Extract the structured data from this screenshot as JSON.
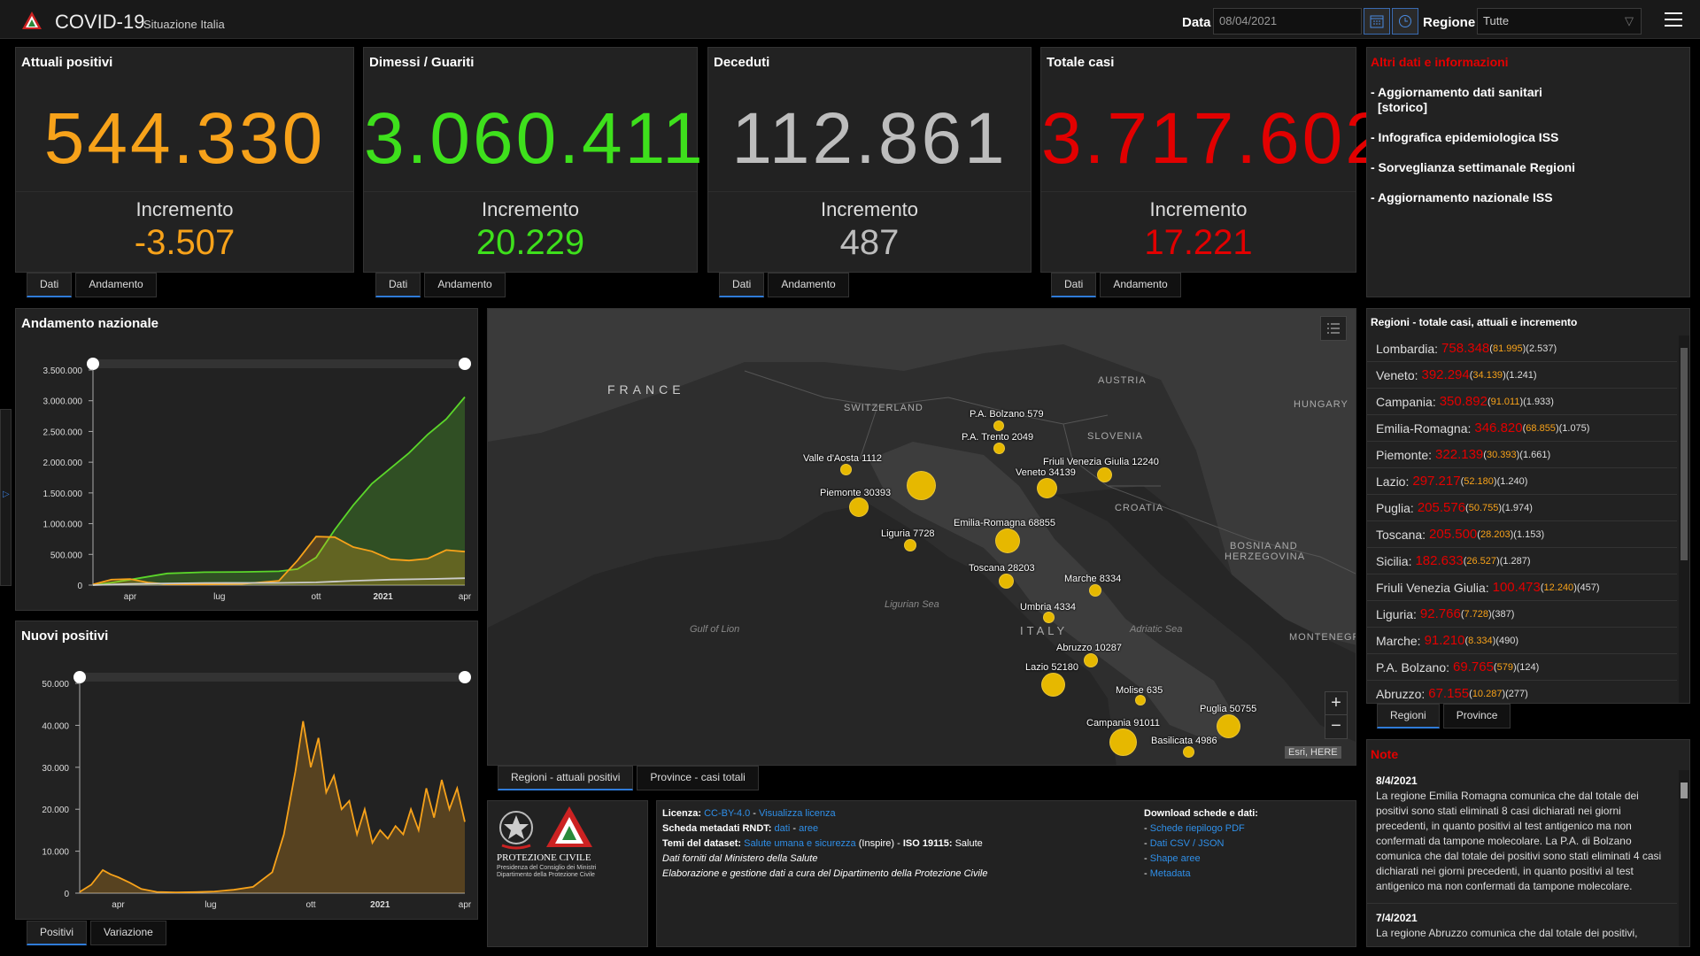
{
  "header": {
    "title": "COVID-19",
    "subtitle": "Situazione Italia",
    "data_label": "Data",
    "date_value": "08/04/2021",
    "region_label": "Regione",
    "region_value": "Tutte"
  },
  "cards": [
    {
      "title": "Attuali positivi",
      "value": "544.330",
      "inc_label": "Incremento",
      "inc": "-3.507",
      "color": "#f7a21a"
    },
    {
      "title": "Dimessi / Guariti",
      "value": "3.060.411",
      "inc_label": "Incremento",
      "inc": "20.229",
      "color": "#3ee01c"
    },
    {
      "title": "Deceduti",
      "value": "112.861",
      "inc_label": "Incremento",
      "inc": "487",
      "color": "#bdbdbd"
    },
    {
      "title": "Totale casi",
      "value": "3.717.602",
      "inc_label": "Incremento",
      "inc": "17.221",
      "color": "#e20000"
    }
  ],
  "card_tabs": {
    "dati": "Dati",
    "andamento": "Andamento"
  },
  "info": {
    "title": "Altri dati e informazioni",
    "links": [
      "- Aggiornamento dati sanitari",
      "[storico]",
      "- Infografica epidemiologica ISS",
      "- Sorveglianza settimanale Regioni",
      "- Aggiornamento nazionale ISS"
    ]
  },
  "chart_data": [
    {
      "type": "line",
      "title": "Andamento nazionale",
      "x_ticks": [
        "apr",
        "lug",
        "ott",
        "2021",
        "apr"
      ],
      "y_ticks": [
        "3.500.000",
        "3.000.000",
        "2.500.000",
        "2.000.000",
        "1.500.000",
        "1.000.000",
        "500.000",
        "0"
      ],
      "ylim": [
        0,
        3500000
      ],
      "series": [
        {
          "color": "#5bd62a",
          "x": [
            0,
            0.05,
            0.1,
            0.2,
            0.3,
            0.4,
            0.5,
            0.55,
            0.6,
            0.65,
            0.7,
            0.75,
            0.8,
            0.85,
            0.9,
            0.95,
            1.0
          ],
          "values": [
            0,
            40000,
            90000,
            190000,
            210000,
            215000,
            225000,
            260000,
            450000,
            900000,
            1300000,
            1650000,
            1900000,
            2150000,
            2450000,
            2700000,
            3060000
          ]
        },
        {
          "color": "#f7a21a",
          "x": [
            0,
            0.05,
            0.1,
            0.15,
            0.2,
            0.3,
            0.4,
            0.5,
            0.55,
            0.6,
            0.65,
            0.7,
            0.75,
            0.8,
            0.85,
            0.9,
            0.95,
            1.0
          ],
          "values": [
            10000,
            90000,
            100000,
            40000,
            15000,
            12000,
            20000,
            70000,
            400000,
            790000,
            780000,
            620000,
            550000,
            420000,
            400000,
            430000,
            570000,
            544000
          ]
        },
        {
          "color": "#cccccc",
          "x": [
            0,
            0.1,
            0.3,
            0.5,
            0.6,
            0.7,
            0.8,
            0.9,
            1.0
          ],
          "values": [
            0,
            20000,
            35000,
            36000,
            45000,
            70000,
            90000,
            100000,
            113000
          ]
        }
      ]
    },
    {
      "type": "bar",
      "title": "Nuovi positivi",
      "x_ticks": [
        "apr",
        "lug",
        "ott",
        "2021",
        "apr"
      ],
      "y_ticks": [
        "50.000",
        "40.000",
        "30.000",
        "20.000",
        "10.000",
        "0"
      ],
      "ylim": [
        0,
        50000
      ],
      "series": [
        {
          "color": "#f7a21a",
          "x": [
            0,
            0.03,
            0.06,
            0.08,
            0.1,
            0.13,
            0.16,
            0.2,
            0.25,
            0.3,
            0.35,
            0.4,
            0.45,
            0.5,
            0.53,
            0.56,
            0.58,
            0.6,
            0.62,
            0.64,
            0.66,
            0.68,
            0.7,
            0.72,
            0.74,
            0.76,
            0.78,
            0.8,
            0.82,
            0.84,
            0.86,
            0.88,
            0.9,
            0.92,
            0.94,
            0.96,
            0.98,
            1.0
          ],
          "values": [
            300,
            2000,
            5500,
            4500,
            3800,
            2500,
            1000,
            300,
            200,
            250,
            400,
            800,
            1500,
            5000,
            14000,
            29000,
            41000,
            30000,
            37000,
            24000,
            28000,
            20000,
            22000,
            14000,
            20000,
            12000,
            15000,
            13000,
            16000,
            14000,
            20000,
            15000,
            25000,
            18000,
            27000,
            20000,
            25000,
            17000
          ]
        }
      ]
    }
  ],
  "chart_tabs": {
    "positivi": "Positivi",
    "variazione": "Variazione"
  },
  "map": {
    "countries": [
      "FRANCE",
      "SWITZERLAND",
      "AUSTRIA",
      "HUNGARY",
      "SLOVENIA",
      "CROATIA",
      "BOSNIA AND",
      "HERZEGOVINA",
      "ITALY",
      "MONTENEGR"
    ],
    "seas": [
      "Ligurian Sea",
      "Gulf of Lion",
      "Adriatic Sea"
    ],
    "labels": [
      "P.A. Bolzano 579",
      "P.A. Trento 2049",
      "Friuli Venezia Giulia 12240",
      "Veneto 34139",
      "Valle d'Aosta 1112",
      "Piemonte 30393",
      "Emilia-Romagna 68855",
      "Liguria 7728",
      "Toscana 28203",
      "Marche 8334",
      "Umbria 4334",
      "Abruzzo 10287",
      "Lazio 52180",
      "Molise 635",
      "Puglia 50755",
      "Campania 91011",
      "Basilicata 4986"
    ],
    "attribution": "Esri, HERE",
    "tab1": "Regioni - attuali positivi",
    "tab2": "Province - casi totali"
  },
  "logo": {
    "line1": "PROTEZIONE CIVILE",
    "line2": "Presidenza del Consiglio dei Ministri",
    "line3": "Dipartimento della Protezione Civile"
  },
  "license": {
    "l1a": "Licenza:",
    "l1b": "CC-BY-4.0",
    "l1c": " - ",
    "l1d": "Visualizza licenza",
    "l2a": "Scheda metadati RNDT:",
    "l2b": "dati",
    "l2c": " - ",
    "l2d": "aree",
    "l3a": "Temi del dataset:",
    "l3b": "Salute umana e sicurezza",
    "l3c": " (Inspire) - ",
    "l3d": "ISO 19115:",
    "l3e": " Salute",
    "l4": "Dati forniti dal Ministero della Salute",
    "l5": "Elaborazione e gestione dati a cura del Dipartimento della Protezione Civile",
    "dl_title": "Download schede e dati:",
    "dl": [
      "Schede riepilogo PDF",
      "Dati CSV / JSON",
      "Shape aree",
      "Metadata"
    ]
  },
  "regions": {
    "title": "Regioni - totale casi, attuali e incremento",
    "rows": [
      {
        "n": "Lombardia:",
        "t": "758.348",
        "a": "81.995",
        "i": "2.537"
      },
      {
        "n": "Veneto:",
        "t": "392.294",
        "a": "34.139",
        "i": "1.241"
      },
      {
        "n": "Campania:",
        "t": "350.892",
        "a": "91.011",
        "i": "1.933"
      },
      {
        "n": "Emilia-Romagna:",
        "t": "346.820",
        "a": "68.855",
        "i": "1.075"
      },
      {
        "n": "Piemonte:",
        "t": "322.139",
        "a": "30.393",
        "i": "1.661"
      },
      {
        "n": "Lazio:",
        "t": "297.217",
        "a": "52.180",
        "i": "1.240"
      },
      {
        "n": "Puglia:",
        "t": "205.576",
        "a": "50.755",
        "i": "1.974"
      },
      {
        "n": "Toscana:",
        "t": "205.500",
        "a": "28.203",
        "i": "1.153"
      },
      {
        "n": "Sicilia:",
        "t": "182.633",
        "a": "26.527",
        "i": "1.287"
      },
      {
        "n": "Friuli Venezia Giulia:",
        "t": "100.473",
        "a": "12.240",
        "i": "457"
      },
      {
        "n": "Liguria:",
        "t": "92.766",
        "a": "7.728",
        "i": "387"
      },
      {
        "n": "Marche:",
        "t": "91.210",
        "a": "8.334",
        "i": "490"
      },
      {
        "n": "P.A. Bolzano:",
        "t": "69.765",
        "a": "579",
        "i": "124"
      },
      {
        "n": "Abruzzo:",
        "t": "67.155",
        "a": "10.287",
        "i": "277"
      }
    ],
    "tab1": "Regioni",
    "tab2": "Province"
  },
  "notes": {
    "title": "Note",
    "d1": "8/4/2021",
    "t1": "La regione Emilia Romagna comunica che dal totale dei positivi sono stati eliminati 8 casi dichiarati nei giorni precedenti, in quanto positivi al test antigenico ma non confermati da tampone molecolare. La P.A. di Bolzano comunica che dal totale dei positivi sono stati eliminati 4 casi dichiarati nei giorni precedenti, in quanto positivi al test antigenico ma non confermati da tampone molecolare.",
    "d2": "7/4/2021",
    "t2": "La regione Abruzzo comunica che dal totale dei positivi,"
  }
}
